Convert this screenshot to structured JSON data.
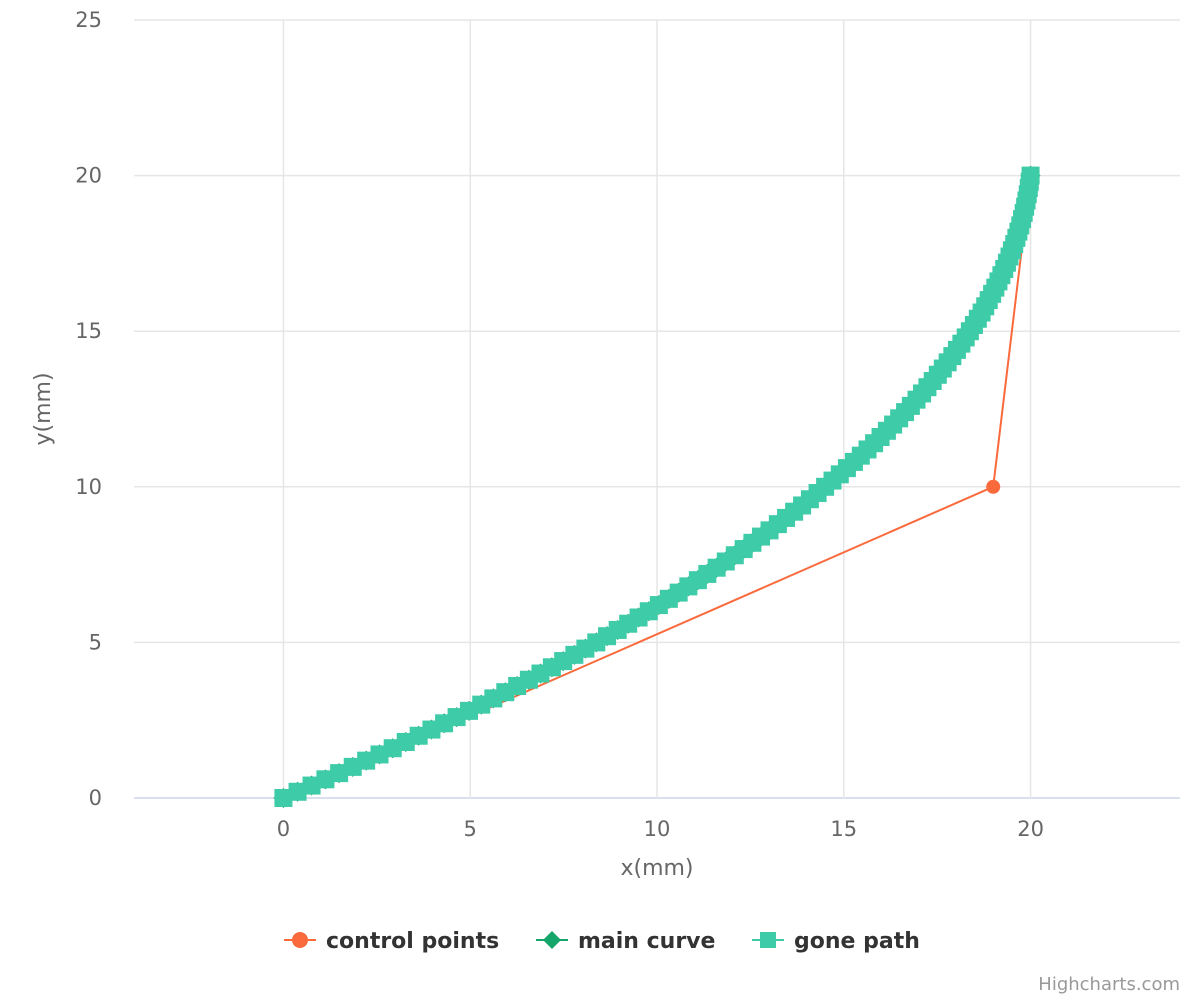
{
  "credits": "Highcharts.com",
  "chart_data": {
    "type": "scatter",
    "title": "",
    "xlabel": "x(mm)",
    "ylabel": "y(mm)",
    "xlim": [
      -4,
      24
    ],
    "ylim": [
      0,
      25
    ],
    "x_ticks": [
      0,
      5,
      10,
      15,
      20
    ],
    "y_ticks": [
      0,
      5,
      10,
      15,
      20,
      25
    ],
    "grid": true,
    "legend_position": "bottom-center",
    "series": [
      {
        "name": "control points",
        "marker": "circle",
        "color": "#FA6A3C",
        "line": true,
        "points": [
          [
            0,
            0
          ],
          [
            19,
            10
          ],
          [
            20,
            20
          ]
        ]
      },
      {
        "name": "main curve",
        "marker": "diamond",
        "color": "#13A56A",
        "line": true,
        "bezier_control_points": [
          [
            0,
            0
          ],
          [
            19,
            10
          ],
          [
            20,
            20
          ]
        ],
        "sample_count": 101
      },
      {
        "name": "gone path",
        "marker": "square",
        "color": "#3ECBA8",
        "line": true,
        "bezier_control_points": [
          [
            0,
            0
          ],
          [
            19,
            10
          ],
          [
            20,
            20
          ]
        ],
        "sample_count": 101
      }
    ]
  }
}
